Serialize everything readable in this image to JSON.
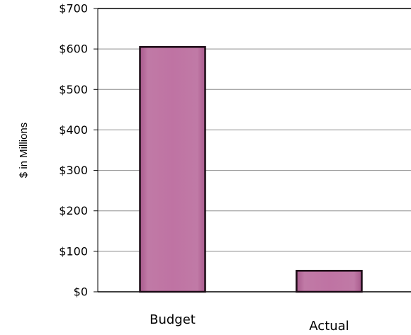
{
  "chart_data": {
    "type": "bar",
    "categories": [
      "Budget",
      "Actual"
    ],
    "values": [
      605,
      52
    ],
    "xlabel": "",
    "ylabel": "$ in Millions",
    "ylim": [
      0,
      700
    ],
    "yticks": [
      0,
      100,
      200,
      300,
      400,
      500,
      600,
      700
    ],
    "ytick_labels": [
      "$0",
      "$100",
      "$200",
      "$300",
      "$400",
      "$500",
      "$600",
      "$700"
    ],
    "grid": true,
    "legend": "none",
    "colors": {
      "bar_fill": "#be70a2",
      "bar_border": "#1a0a14",
      "gridline": "#8c8c8c",
      "axis": "#000000"
    }
  }
}
